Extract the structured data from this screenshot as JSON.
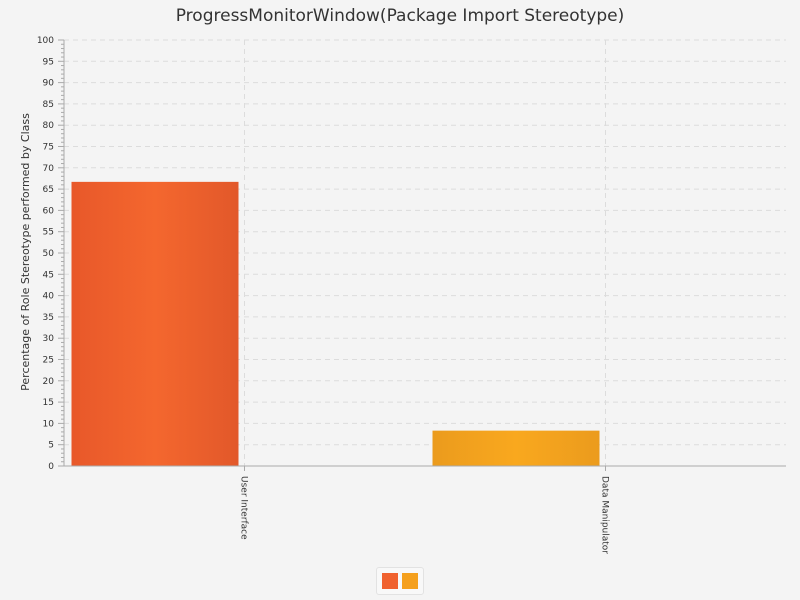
{
  "chart_data": {
    "type": "bar",
    "title": "ProgressMonitorWindow(Package Import Stereotype)",
    "xlabel": "",
    "ylabel": "Percentage of Role Stereotype performed by Class",
    "ylim": [
      0,
      100
    ],
    "yticks": [
      0,
      5,
      10,
      15,
      20,
      25,
      30,
      35,
      40,
      45,
      50,
      55,
      60,
      65,
      70,
      75,
      80,
      85,
      90,
      95,
      100
    ],
    "categories": [
      "User Interface",
      "Data Manipulator"
    ],
    "values": [
      66.7,
      8.3
    ],
    "colors": [
      "#f0612e",
      "#f5a01d"
    ],
    "grid": true,
    "legend_position": "bottom"
  }
}
